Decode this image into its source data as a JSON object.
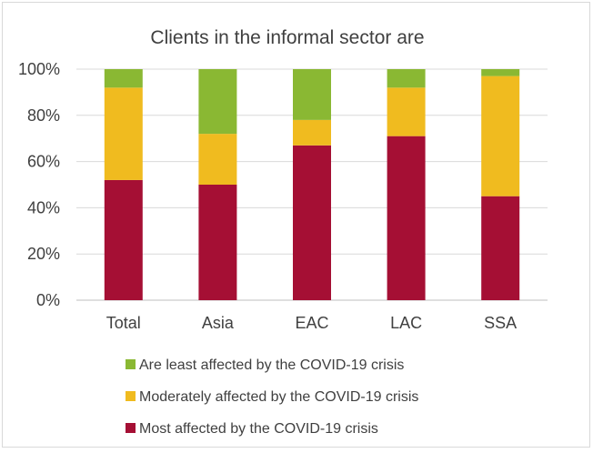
{
  "chart_data": {
    "type": "bar",
    "stacked": true,
    "percent_stacked": true,
    "title": "Clients in the informal sector are",
    "xlabel": "",
    "ylabel": "",
    "categories": [
      "Total",
      "Asia",
      "EAC",
      "LAC",
      "SSA"
    ],
    "ylim": [
      0,
      100
    ],
    "yticks": [
      0,
      20,
      40,
      60,
      80,
      100
    ],
    "ytick_labels": [
      "0%",
      "20%",
      "40%",
      "60%",
      "80%",
      "100%"
    ],
    "grid": true,
    "legend_position": "bottom",
    "series": [
      {
        "name": "Most affected by the COVID-19 crisis",
        "color": "#a50f34",
        "values": [
          52,
          50,
          67,
          71,
          45
        ]
      },
      {
        "name": "Moderately affected by the COVID-19 crisis",
        "color": "#f0bb1f",
        "values": [
          40,
          22,
          11,
          21,
          52
        ]
      },
      {
        "name": "Are least affected by the COVID-19 crisis",
        "color": "#8ab833",
        "values": [
          8,
          28,
          22,
          8,
          3
        ]
      }
    ],
    "legend_order": [
      2,
      1,
      0
    ]
  }
}
